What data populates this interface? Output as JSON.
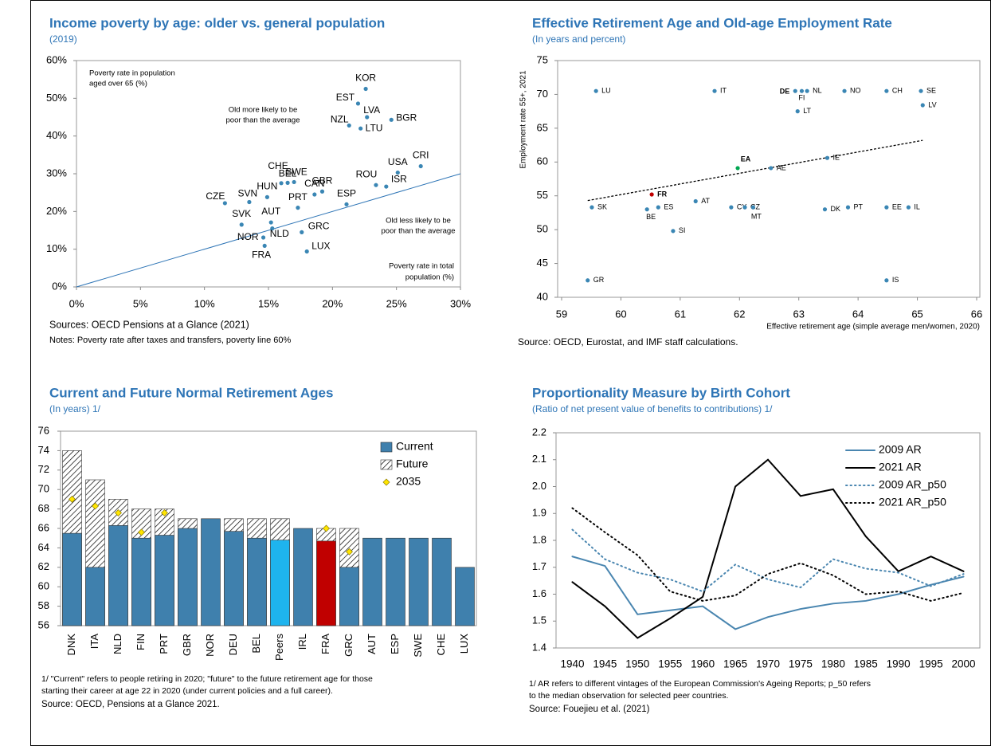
{
  "chart_data": [
    {
      "type": "scatter",
      "title": "Income poverty by age: older vs. general population",
      "subtitle": "(2019)",
      "labels": [
        "CZE",
        "SVK",
        "SVN",
        "HUN",
        "CHE",
        "BEL",
        "SWE",
        "AUT",
        "NOR",
        "NLD",
        "FRA",
        "PRT",
        "CAN",
        "GBR",
        "GRC",
        "LUX",
        "ESP",
        "ROU",
        "ISR",
        "USA",
        "CRI",
        "KOR",
        "EST",
        "LVA",
        "NZL",
        "LTU",
        "BGR"
      ],
      "x": [
        11.6,
        12.9,
        13.5,
        14.9,
        16.0,
        16.5,
        17.0,
        15.2,
        14.6,
        15.3,
        14.7,
        17.3,
        18.6,
        19.2,
        17.6,
        18.0,
        21.1,
        23.4,
        24.2,
        25.1,
        26.9,
        22.6,
        22.0,
        22.7,
        21.3,
        22.2,
        24.6
      ],
      "y": [
        22.2,
        16.5,
        22.5,
        23.8,
        27.5,
        27.6,
        27.8,
        17.1,
        13.1,
        15.5,
        10.9,
        21.0,
        24.5,
        25.3,
        14.5,
        9.4,
        21.9,
        27.0,
        26.6,
        30.3,
        32.0,
        52.5,
        48.6,
        45.0,
        42.8,
        42.0,
        44.3
      ],
      "color": "#3a86b4",
      "label_colors": [
        null,
        null,
        null,
        null,
        null,
        null,
        null,
        null,
        null,
        null,
        "#e8322e",
        null,
        null,
        null,
        null,
        null,
        null,
        null,
        null,
        null,
        null,
        null,
        null,
        null,
        null,
        null,
        null
      ],
      "xlim": [
        0,
        30
      ],
      "xticks": [
        {
          "value": 0,
          "label": "0%"
        },
        {
          "value": 5,
          "label": "5%"
        },
        {
          "value": 10,
          "label": "10%"
        },
        {
          "value": 15,
          "label": "15%"
        },
        {
          "value": 20,
          "label": "20%"
        },
        {
          "value": 25,
          "label": "25%"
        },
        {
          "value": 30,
          "label": "30%"
        }
      ],
      "ylim": [
        0,
        60
      ],
      "yticks": [
        {
          "value": 0,
          "label": "0%"
        },
        {
          "value": 10,
          "label": "10%"
        },
        {
          "value": 20,
          "label": "20%"
        },
        {
          "value": 30,
          "label": "30%"
        },
        {
          "value": 40,
          "label": "40%"
        },
        {
          "value": 50,
          "label": "50%"
        },
        {
          "value": 60,
          "label": "60%"
        }
      ],
      "reference_line": {
        "x": [
          0,
          30
        ],
        "y": [
          0,
          30
        ],
        "color": "#2e75b6"
      },
      "annotations": {
        "y_note": [
          "Poverty rate in population",
          "aged over 65 (%)"
        ],
        "upper": [
          "Old more likely to be",
          "poor than the average"
        ],
        "lower": [
          "Old less likely to be",
          "poor than the average"
        ],
        "x_note": [
          "Poverty rate in total",
          "population (%)"
        ]
      },
      "source": "Sources: OECD Pensions at a Glance (2021)",
      "notes": "Notes: Poverty rate after taxes and transfers, poverty line 60%"
    },
    {
      "type": "scatter",
      "title": "Effective Retirement Age and Old-age Employment Rate",
      "subtitle": "(In years and percent)",
      "ylabel": "Employment rate 55+, 2021",
      "xlabel": "Effective retirement age (simple average men/women, 2020)",
      "labels": [
        "LU",
        "IT",
        "DE",
        "FI",
        "NL",
        "NO",
        "CH",
        "SE",
        "LV",
        "LT",
        "IE",
        "EA",
        "AE",
        "FR",
        "AT",
        "SK",
        "BE",
        "ES",
        "CY",
        "CZ",
        "MT",
        "DK",
        "PT",
        "EE",
        "IL",
        "SI",
        "GR",
        "IS"
      ],
      "x": [
        59.58,
        61.58,
        62.94,
        63.05,
        63.14,
        63.77,
        64.48,
        65.06,
        65.09,
        62.98,
        63.48,
        61.97,
        62.53,
        60.52,
        61.26,
        59.51,
        60.44,
        60.63,
        61.86,
        62.09,
        62.23,
        63.44,
        63.83,
        64.48,
        64.85,
        60.88,
        59.44,
        64.48
      ],
      "y": [
        70.5,
        70.5,
        70.5,
        70.5,
        70.5,
        70.5,
        70.5,
        70.5,
        68.4,
        67.5,
        60.6,
        59.1,
        59.1,
        55.2,
        54.2,
        53.3,
        53.0,
        53.3,
        53.3,
        53.3,
        53.3,
        53.0,
        53.3,
        53.3,
        53.3,
        49.8,
        42.5,
        42.5
      ],
      "color": "#3a86b4",
      "point_colors": [
        null,
        null,
        null,
        null,
        null,
        null,
        null,
        null,
        null,
        null,
        null,
        "#00a651",
        null,
        "#c00000",
        null,
        null,
        null,
        null,
        null,
        null,
        null,
        null,
        null,
        null,
        null,
        null,
        null,
        null
      ],
      "label_colors": [
        null,
        null,
        "#00a651",
        null,
        null,
        null,
        null,
        null,
        null,
        null,
        null,
        "#00a651",
        null,
        "#c00000",
        null,
        null,
        null,
        null,
        null,
        null,
        null,
        null,
        null,
        null,
        null,
        null,
        null,
        null
      ],
      "trend": {
        "x": [
          59.44,
          65.09
        ],
        "y": [
          54.3,
          63.2
        ]
      },
      "xlim": [
        59,
        66
      ],
      "xticks": [
        59,
        60,
        61,
        62,
        63,
        64,
        65,
        66
      ],
      "ylim": [
        40,
        75
      ],
      "yticks": [
        40,
        45,
        50,
        55,
        60,
        65,
        70,
        75
      ],
      "source": "Source: OECD, Eurostat, and IMF staff calculations."
    },
    {
      "type": "bar",
      "title": "Current and Future Normal Retirement Ages",
      "subtitle": "(In years) 1/",
      "categories": [
        "DNK",
        "ITA",
        "NLD",
        "FIN",
        "PRT",
        "GBR",
        "NOR",
        "DEU",
        "BEL",
        "Peers",
        "IRL",
        "FRA",
        "GRC",
        "AUT",
        "ESP",
        "SWE",
        "CHE",
        "LUX"
      ],
      "series": [
        {
          "name": "Current",
          "color": "#3f80ad",
          "colors": [
            "#3f80ad",
            "#3f80ad",
            "#3f80ad",
            "#3f80ad",
            "#3f80ad",
            "#3f80ad",
            "#3f80ad",
            "#3f80ad",
            "#3f80ad",
            "#1eb4ee",
            "#3f80ad",
            "#c00000",
            "#3f80ad",
            "#3f80ad",
            "#3f80ad",
            "#3f80ad",
            "#3f80ad",
            "#3f80ad"
          ],
          "values": [
            65.5,
            62,
            66.3,
            65,
            65.3,
            66,
            67,
            65.7,
            65,
            64.8,
            66,
            64.7,
            62,
            65,
            65,
            65,
            65,
            62
          ]
        },
        {
          "name": "Future",
          "color": "hatch",
          "values": [
            74,
            71,
            69,
            68,
            68,
            67,
            null,
            67,
            67,
            67,
            null,
            66,
            66,
            null,
            null,
            null,
            null,
            null
          ]
        },
        {
          "name": "2035",
          "color": "#ffe500",
          "values": [
            69,
            68.3,
            67.6,
            65.6,
            67.6,
            null,
            null,
            null,
            null,
            null,
            null,
            66,
            63.6,
            null,
            null,
            null,
            null,
            null
          ]
        }
      ],
      "ylim": [
        56,
        76
      ],
      "yticks": [
        56,
        58,
        60,
        62,
        64,
        66,
        68,
        70,
        72,
        74,
        76
      ],
      "footnote": [
        "1/ \"Current\" refers to people retiring in 2020; \"future\" to the future retirement age for those",
        "starting their career at age 22 in 2020 (under current policies and a full career)."
      ],
      "source": "Source: OECD, Pensions at a Glance 2021."
    },
    {
      "type": "line",
      "title": "Proportionality Measure by Birth Cohort",
      "subtitle": "(Ratio of net present value of benefits to contributions) 1/",
      "categories": [
        1940,
        1945,
        1950,
        1955,
        1960,
        1965,
        1970,
        1975,
        1980,
        1985,
        1990,
        1995,
        2000
      ],
      "series": [
        {
          "name": "2009 AR",
          "color": "#4a86b0",
          "dash": "solid",
          "values": [
            1.74,
            1.705,
            1.525,
            1.54,
            1.555,
            1.47,
            1.515,
            1.545,
            1.565,
            1.575,
            1.6,
            1.635,
            1.665
          ]
        },
        {
          "name": "2021 AR",
          "color": "#000000",
          "dash": "solid",
          "values": [
            1.645,
            1.555,
            1.437,
            1.51,
            1.59,
            2.0,
            2.1,
            1.965,
            1.99,
            1.815,
            1.685,
            1.74,
            1.685
          ]
        },
        {
          "name": "2009 AR_p50",
          "color": "#4a86b0",
          "dash": "dotted",
          "values": [
            1.84,
            1.73,
            1.68,
            1.655,
            1.61,
            1.71,
            1.655,
            1.625,
            1.73,
            1.695,
            1.68,
            1.63,
            1.675
          ]
        },
        {
          "name": "2021 AR_p50",
          "color": "#000000",
          "dash": "dotted",
          "values": [
            1.92,
            1.83,
            1.745,
            1.61,
            1.575,
            1.595,
            1.675,
            1.715,
            1.67,
            1.6,
            1.61,
            1.575,
            1.605
          ]
        }
      ],
      "ylim": [
        1.4,
        2.2
      ],
      "yticks": [
        1.4,
        1.5,
        1.6,
        1.7,
        1.8,
        1.9,
        {
          "value": 2,
          "label": "2.0"
        },
        2.1,
        2.2
      ],
      "footnote": [
        "1/ AR refers to different vintages of the European Commission's Ageing Reports; p_50 refers",
        "to the median observation for selected peer countries."
      ],
      "source": "Source: Fouejieu et al. (2021)"
    }
  ]
}
